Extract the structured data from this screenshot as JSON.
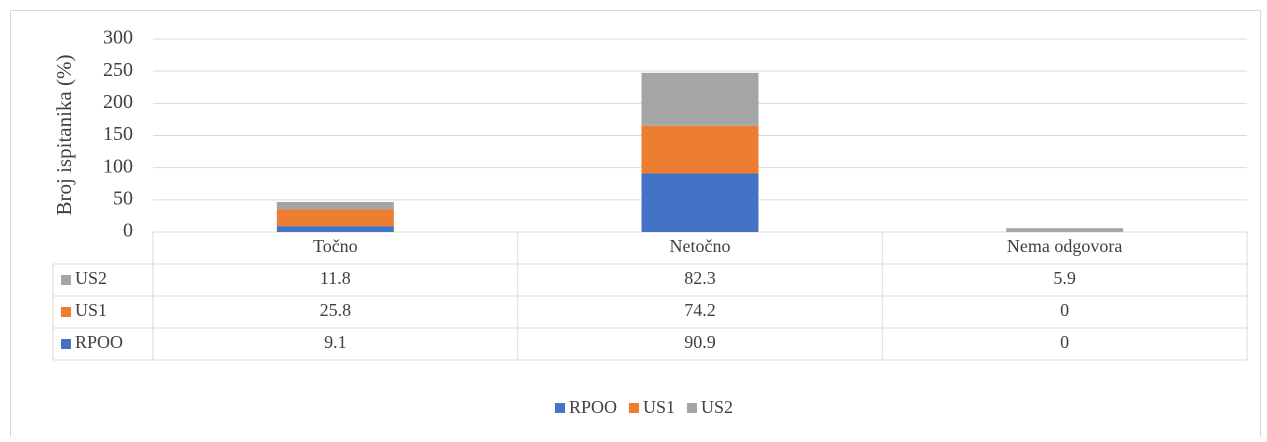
{
  "chart_data": {
    "type": "bar",
    "stacked": true,
    "y_label": "Broj ispitanika (%)",
    "categories": [
      "Točno",
      "Netočno",
      "Nema odgovora"
    ],
    "series": [
      {
        "name": "RPOO",
        "color": "#4472c4",
        "values": [
          9.1,
          90.9,
          0
        ]
      },
      {
        "name": "US1",
        "color": "#ed7d31",
        "values": [
          25.8,
          74.2,
          0
        ]
      },
      {
        "name": "US2",
        "color": "#a5a5a5",
        "values": [
          11.8,
          82.3,
          5.9
        ]
      }
    ],
    "ylim": [
      0,
      300
    ],
    "yticks": [
      0,
      50,
      100,
      150,
      200,
      250,
      300
    ],
    "grid": true,
    "data_table": true,
    "legend": "bottom"
  }
}
